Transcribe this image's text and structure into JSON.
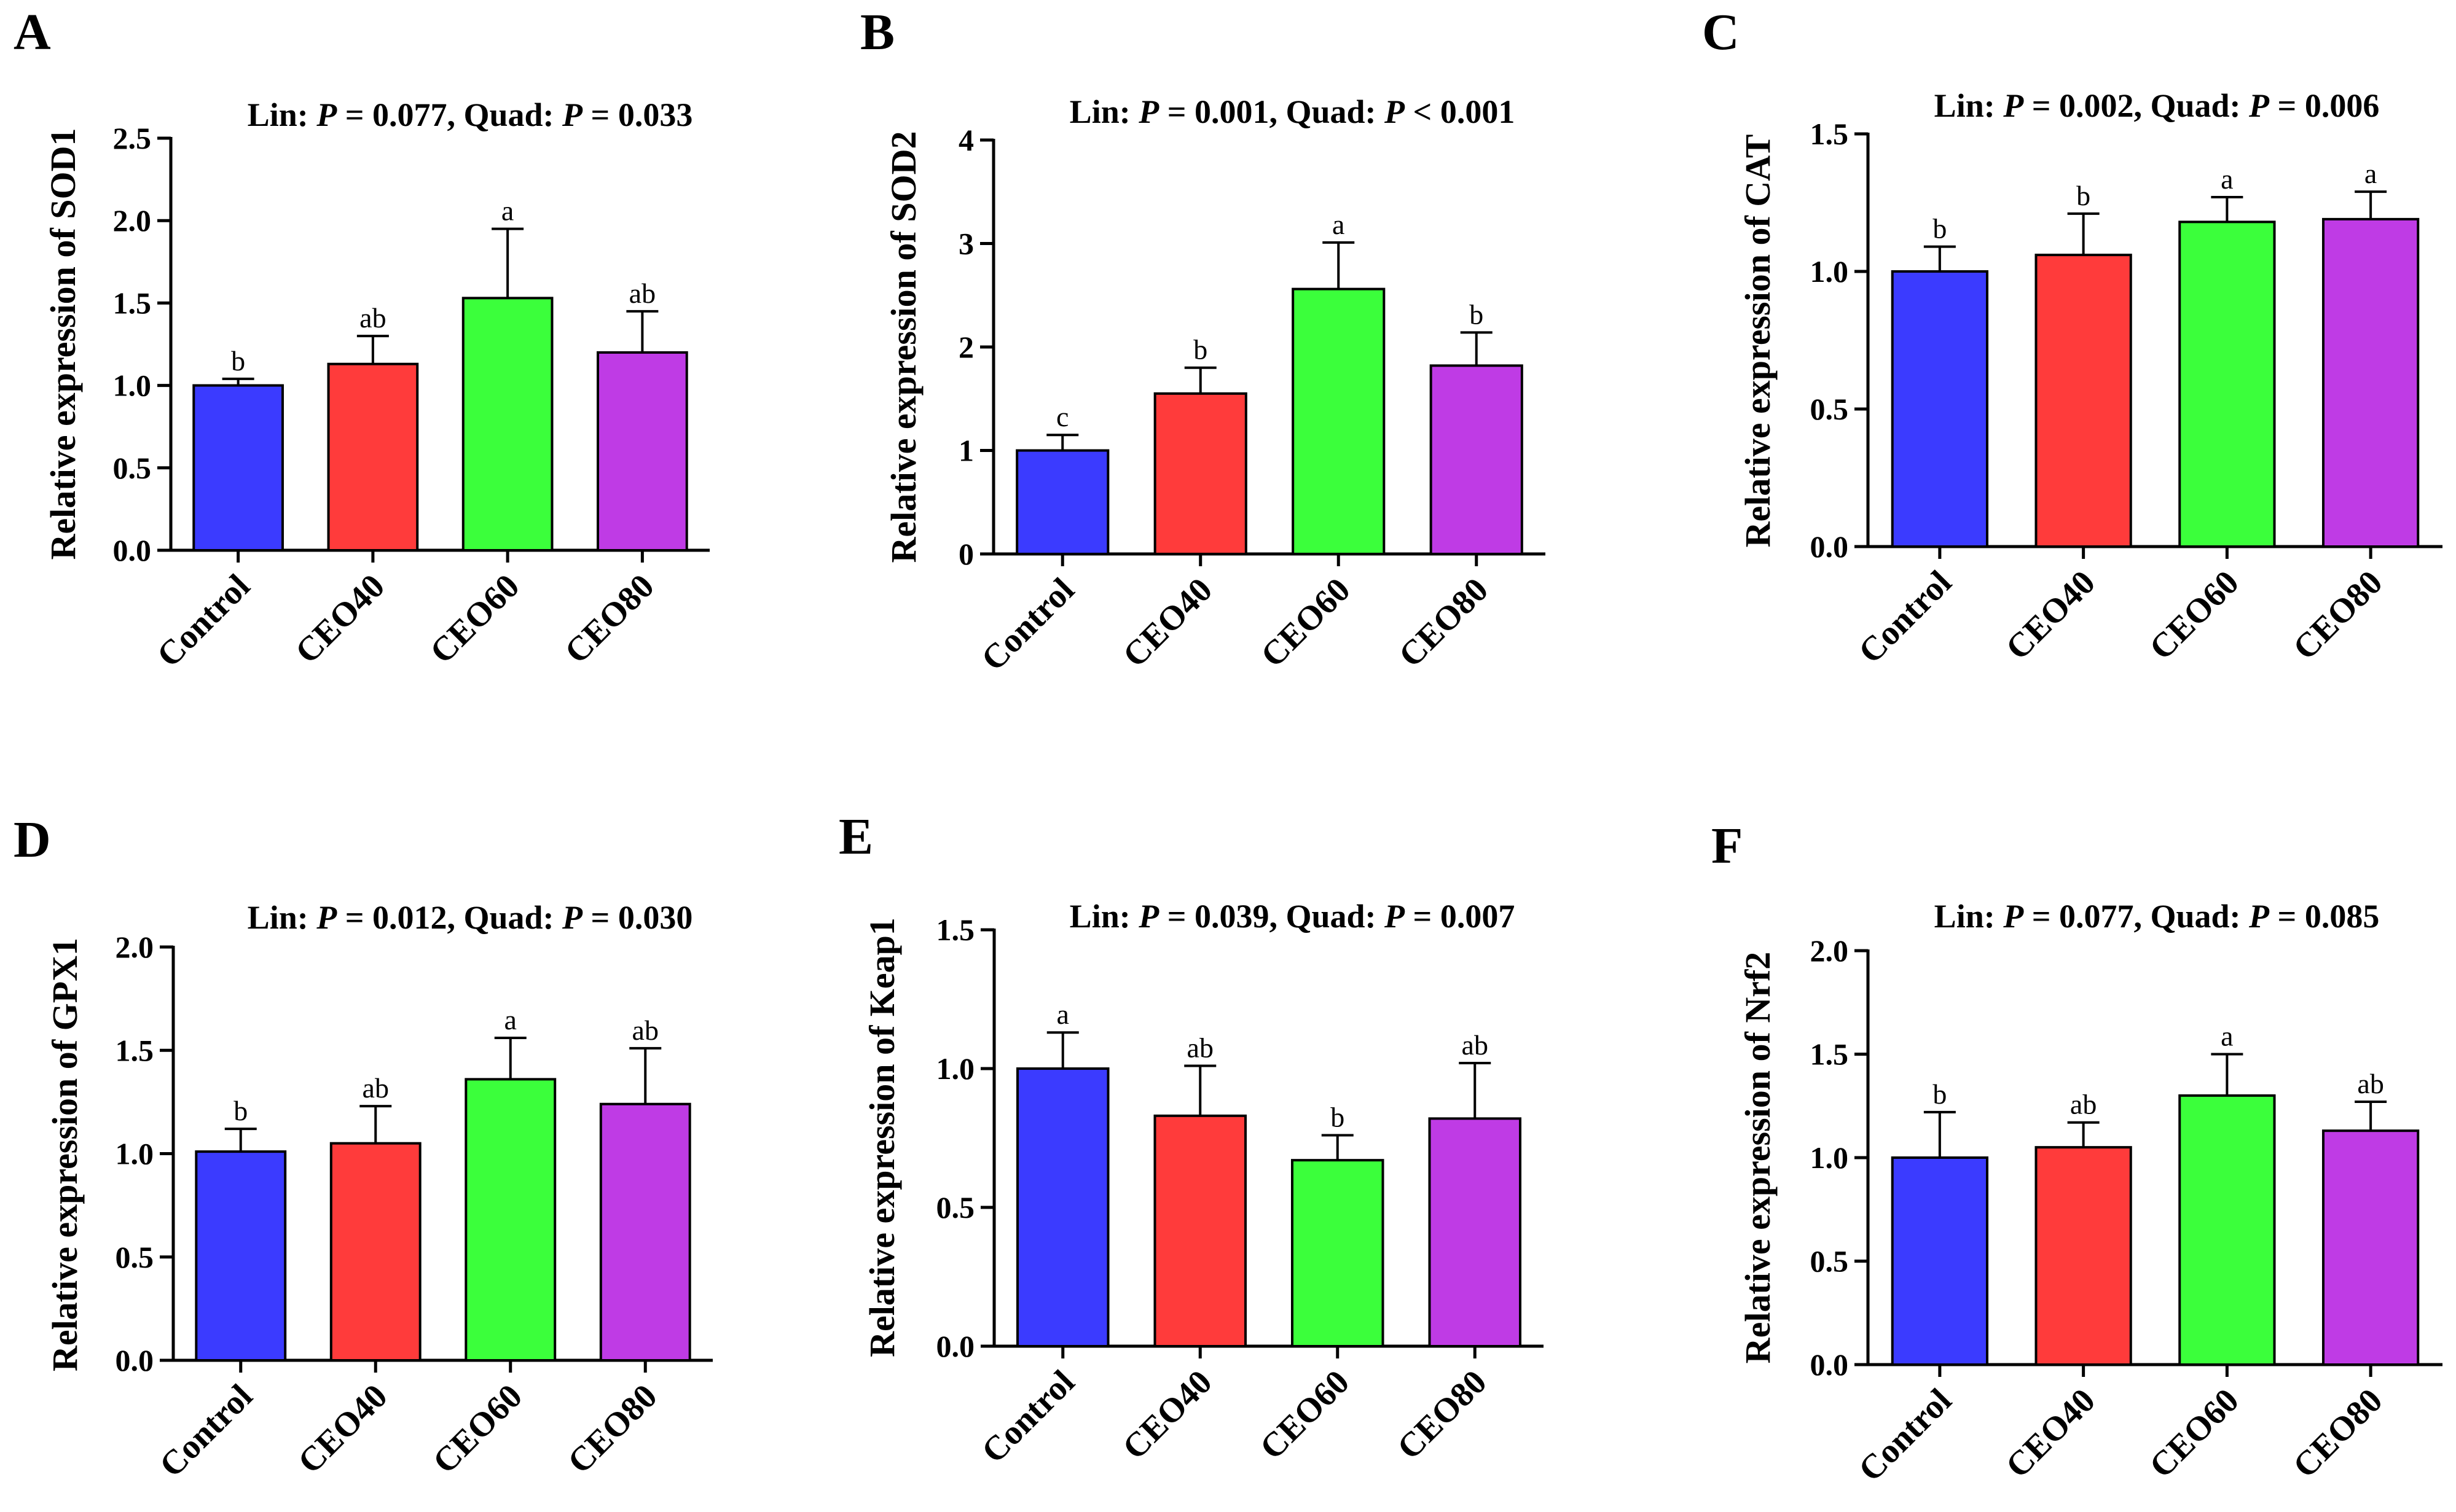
{
  "colors": {
    "control": "#3b3bff",
    "ceo40": "#ff3b3b",
    "ceo60": "#3bff3b",
    "ceo80": "#bf3be5"
  },
  "chart_data": [
    {
      "type": "bar",
      "panel": "A",
      "title_parts": [
        "Lin: ",
        "P",
        " = 0.077, Quad: ",
        "P",
        " = 0.033"
      ],
      "ylabel": "Relative expression of SOD1",
      "xlabel": "",
      "ylim": [
        0,
        2.5
      ],
      "yticks": [
        "0.0",
        "0.5",
        "1.0",
        "1.5",
        "2.0",
        "2.5"
      ],
      "ytick_values": [
        0,
        0.5,
        1.0,
        1.5,
        2.0,
        2.5
      ],
      "categories": [
        "Control",
        "CEO40",
        "CEO60",
        "CEO80"
      ],
      "values": [
        1.0,
        1.13,
        1.53,
        1.2
      ],
      "errors": [
        0.04,
        0.17,
        0.42,
        0.25
      ],
      "letters": [
        "b",
        "ab",
        "a",
        "ab"
      ]
    },
    {
      "type": "bar",
      "panel": "B",
      "title_parts": [
        "Lin: ",
        "P",
        " = 0.001, Quad: ",
        "P",
        " < 0.001"
      ],
      "ylabel": "Relative expression of SOD2",
      "xlabel": "",
      "ylim": [
        0,
        4
      ],
      "yticks": [
        "0",
        "1",
        "2",
        "3",
        "4"
      ],
      "ytick_values": [
        0,
        1,
        2,
        3,
        4
      ],
      "categories": [
        "Control",
        "CEO40",
        "CEO60",
        "CEO80"
      ],
      "values": [
        1.0,
        1.55,
        2.56,
        1.82
      ],
      "errors": [
        0.15,
        0.25,
        0.45,
        0.32
      ],
      "letters": [
        "c",
        "b",
        "a",
        "b"
      ]
    },
    {
      "type": "bar",
      "panel": "C",
      "title_parts": [
        "Lin: ",
        "P",
        " = 0.002, Quad: ",
        "P",
        " = 0.006"
      ],
      "ylabel": "Relative expression of CAT",
      "xlabel": "",
      "ylim": [
        0,
        1.5
      ],
      "yticks": [
        "0.0",
        "0.5",
        "1.0",
        "1.5"
      ],
      "ytick_values": [
        0,
        0.5,
        1.0,
        1.5
      ],
      "categories": [
        "Control",
        "CEO40",
        "CEO60",
        "CEO80"
      ],
      "values": [
        1.0,
        1.06,
        1.18,
        1.19
      ],
      "errors": [
        0.09,
        0.15,
        0.09,
        0.1
      ],
      "letters": [
        "b",
        "b",
        "a",
        "a"
      ]
    },
    {
      "type": "bar",
      "panel": "D",
      "title_parts": [
        "Lin: ",
        "P",
        " = 0.012, Quad: ",
        "P",
        " = 0.030"
      ],
      "ylabel": "Relative expression of GPX1",
      "xlabel": "",
      "ylim": [
        0,
        2.0
      ],
      "yticks": [
        "0.0",
        "0.5",
        "1.0",
        "1.5",
        "2.0"
      ],
      "ytick_values": [
        0,
        0.5,
        1.0,
        1.5,
        2.0
      ],
      "categories": [
        "Control",
        "CEO40",
        "CEO60",
        "CEO80"
      ],
      "values": [
        1.01,
        1.05,
        1.36,
        1.24
      ],
      "errors": [
        0.11,
        0.18,
        0.2,
        0.27
      ],
      "letters": [
        "b",
        "ab",
        "a",
        "ab"
      ]
    },
    {
      "type": "bar",
      "panel": "E",
      "title_parts": [
        "Lin: ",
        "P",
        " = 0.039, Quad: ",
        "P",
        " = 0.007"
      ],
      "ylabel": "Relative expression of Keap1",
      "xlabel": "",
      "ylim": [
        0,
        1.5
      ],
      "yticks": [
        "0.0",
        "0.5",
        "1.0",
        "1.5"
      ],
      "ytick_values": [
        0,
        0.5,
        1.0,
        1.5
      ],
      "categories": [
        "Control",
        "CEO40",
        "CEO60",
        "CEO80"
      ],
      "values": [
        1.0,
        0.83,
        0.67,
        0.82
      ],
      "errors": [
        0.13,
        0.18,
        0.09,
        0.2
      ],
      "letters": [
        "a",
        "ab",
        "b",
        "ab"
      ]
    },
    {
      "type": "bar",
      "panel": "F",
      "title_parts": [
        "Lin: ",
        "P",
        " = 0.077, Quad: ",
        "P",
        " = 0.085"
      ],
      "ylabel": "Relative expression of Nrf2",
      "xlabel": "",
      "ylim": [
        0,
        2.0
      ],
      "yticks": [
        "0.0",
        "0.5",
        "1.0",
        "1.5",
        "2.0"
      ],
      "ytick_values": [
        0,
        0.5,
        1.0,
        1.5,
        2.0
      ],
      "categories": [
        "Control",
        "CEO40",
        "CEO60",
        "CEO80"
      ],
      "values": [
        1.0,
        1.05,
        1.3,
        1.13
      ],
      "errors": [
        0.22,
        0.12,
        0.2,
        0.14
      ],
      "letters": [
        "b",
        "ab",
        "a",
        "ab"
      ]
    }
  ]
}
